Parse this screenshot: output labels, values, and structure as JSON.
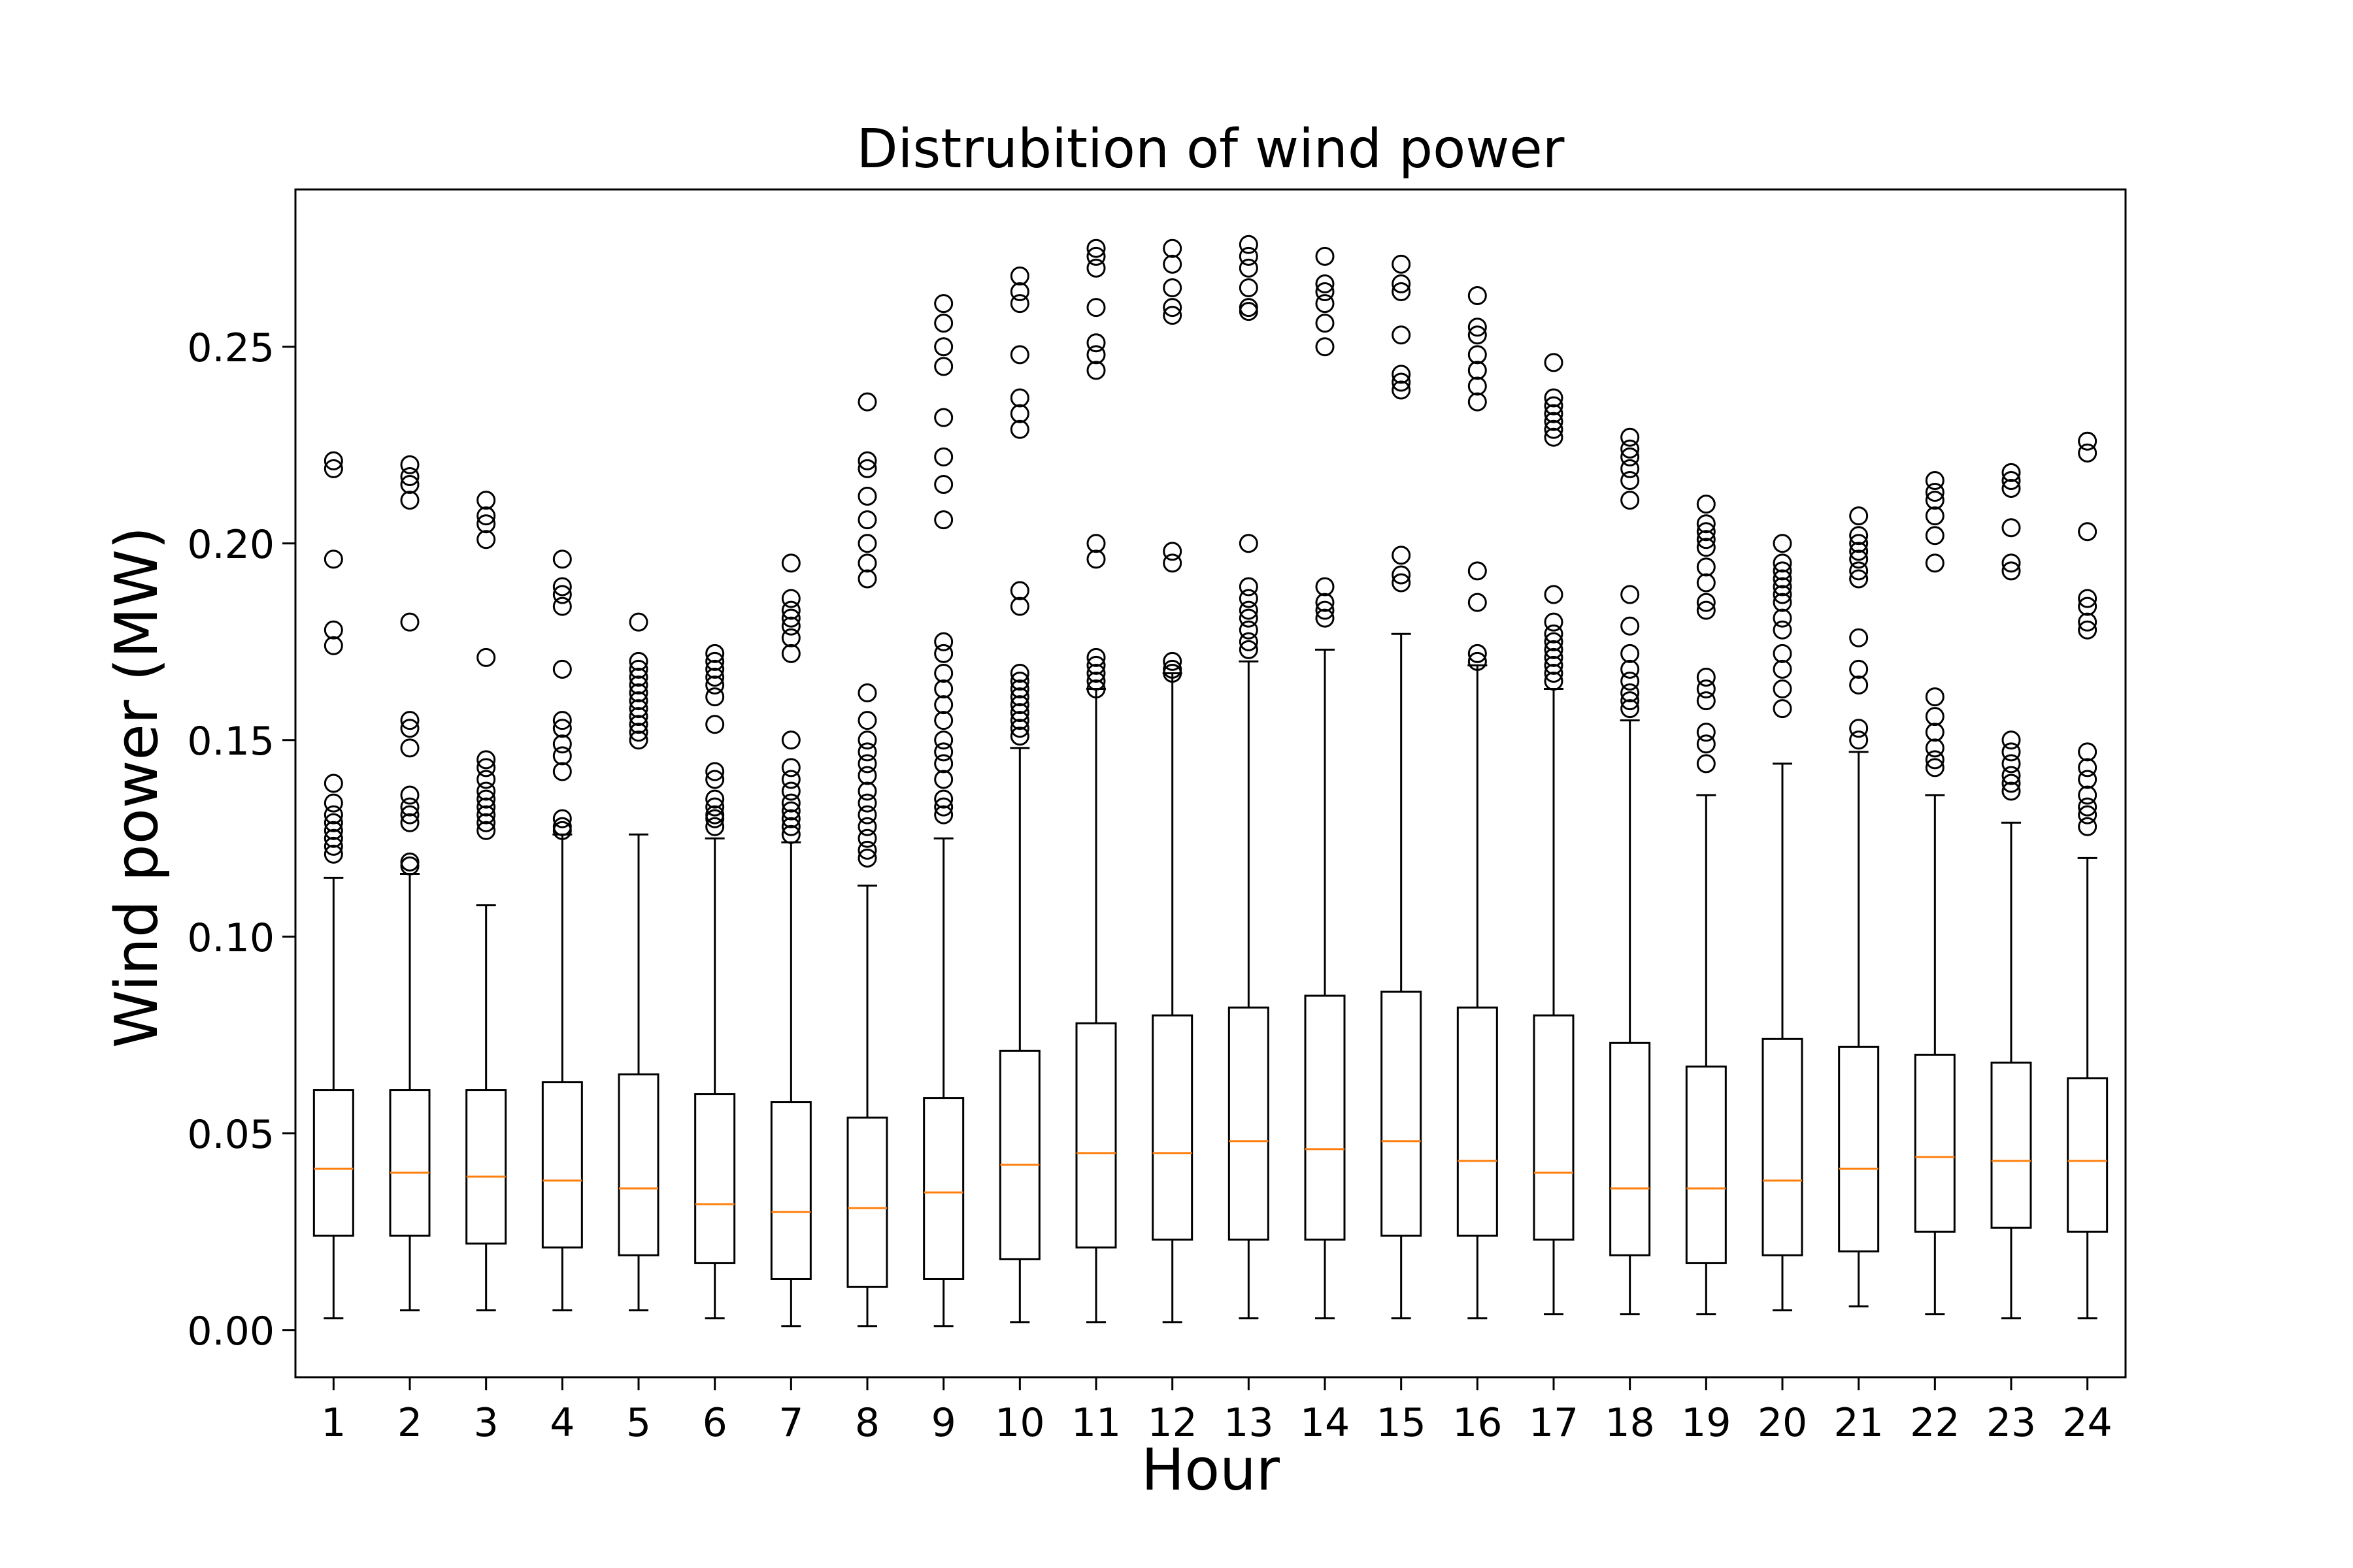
{
  "chart_data": {
    "type": "box",
    "title": "Distrubition of wind power",
    "xlabel": "Hour",
    "ylabel": "Wind power (MW)",
    "categories": [
      "1",
      "2",
      "3",
      "4",
      "5",
      "6",
      "7",
      "8",
      "9",
      "10",
      "11",
      "12",
      "13",
      "14",
      "15",
      "16",
      "17",
      "18",
      "19",
      "20",
      "21",
      "22",
      "23",
      "24"
    ],
    "yticks": [
      "0.00",
      "0.05",
      "0.10",
      "0.15",
      "0.20",
      "0.25"
    ],
    "ylim": [
      -0.012,
      0.29
    ],
    "grid": false,
    "colors": {
      "box": "#000000",
      "median": "#ff7f0e",
      "outlier": "#000000"
    },
    "boxes": [
      {
        "whislo": 0.003,
        "q1": 0.024,
        "med": 0.041,
        "q3": 0.061,
        "whishi": 0.115,
        "fliers": [
          0.221,
          0.219,
          0.196,
          0.178,
          0.174,
          0.139,
          0.134,
          0.131,
          0.129,
          0.127,
          0.125,
          0.123,
          0.121
        ]
      },
      {
        "whislo": 0.005,
        "q1": 0.024,
        "med": 0.04,
        "q3": 0.061,
        "whishi": 0.116,
        "fliers": [
          0.22,
          0.217,
          0.215,
          0.211,
          0.18,
          0.155,
          0.153,
          0.148,
          0.136,
          0.133,
          0.131,
          0.129,
          0.119,
          0.118
        ]
      },
      {
        "whislo": 0.005,
        "q1": 0.022,
        "med": 0.039,
        "q3": 0.061,
        "whishi": 0.108,
        "fliers": [
          0.211,
          0.207,
          0.205,
          0.201,
          0.171,
          0.145,
          0.143,
          0.14,
          0.137,
          0.135,
          0.133,
          0.131,
          0.129,
          0.127
        ]
      },
      {
        "whislo": 0.005,
        "q1": 0.021,
        "med": 0.038,
        "q3": 0.063,
        "whishi": 0.126,
        "fliers": [
          0.196,
          0.189,
          0.187,
          0.184,
          0.168,
          0.155,
          0.153,
          0.149,
          0.146,
          0.142,
          0.13,
          0.128,
          0.127
        ]
      },
      {
        "whislo": 0.005,
        "q1": 0.019,
        "med": 0.036,
        "q3": 0.065,
        "whishi": 0.126,
        "fliers": [
          0.18,
          0.17,
          0.168,
          0.166,
          0.164,
          0.162,
          0.16,
          0.158,
          0.156,
          0.154,
          0.152,
          0.15
        ]
      },
      {
        "whislo": 0.003,
        "q1": 0.017,
        "med": 0.032,
        "q3": 0.06,
        "whishi": 0.125,
        "fliers": [
          0.172,
          0.17,
          0.168,
          0.166,
          0.164,
          0.161,
          0.154,
          0.142,
          0.14,
          0.135,
          0.133,
          0.131,
          0.13,
          0.128
        ]
      },
      {
        "whislo": 0.001,
        "q1": 0.013,
        "med": 0.03,
        "q3": 0.058,
        "whishi": 0.124,
        "fliers": [
          0.195,
          0.186,
          0.183,
          0.181,
          0.179,
          0.176,
          0.172,
          0.15,
          0.143,
          0.14,
          0.137,
          0.134,
          0.132,
          0.13,
          0.128,
          0.126
        ]
      },
      {
        "whislo": 0.001,
        "q1": 0.011,
        "med": 0.031,
        "q3": 0.054,
        "whishi": 0.113,
        "fliers": [
          0.236,
          0.221,
          0.219,
          0.212,
          0.206,
          0.2,
          0.195,
          0.191,
          0.162,
          0.155,
          0.15,
          0.147,
          0.144,
          0.141,
          0.137,
          0.134,
          0.131,
          0.128,
          0.125,
          0.122,
          0.12
        ]
      },
      {
        "whislo": 0.001,
        "q1": 0.013,
        "med": 0.035,
        "q3": 0.059,
        "whishi": 0.125,
        "fliers": [
          0.261,
          0.256,
          0.25,
          0.245,
          0.232,
          0.222,
          0.215,
          0.206,
          0.175,
          0.172,
          0.167,
          0.163,
          0.159,
          0.155,
          0.15,
          0.147,
          0.144,
          0.14,
          0.135,
          0.133,
          0.131
        ]
      },
      {
        "whislo": 0.002,
        "q1": 0.018,
        "med": 0.042,
        "q3": 0.071,
        "whishi": 0.148,
        "fliers": [
          0.268,
          0.264,
          0.261,
          0.248,
          0.237,
          0.233,
          0.229,
          0.188,
          0.184,
          0.167,
          0.165,
          0.163,
          0.161,
          0.159,
          0.157,
          0.155,
          0.153,
          0.151
        ]
      },
      {
        "whislo": 0.002,
        "q1": 0.021,
        "med": 0.045,
        "q3": 0.078,
        "whishi": 0.163,
        "fliers": [
          0.275,
          0.273,
          0.27,
          0.26,
          0.251,
          0.248,
          0.244,
          0.2,
          0.196,
          0.171,
          0.169,
          0.167,
          0.165,
          0.163
        ]
      },
      {
        "whislo": 0.002,
        "q1": 0.023,
        "med": 0.045,
        "q3": 0.08,
        "whishi": 0.167,
        "fliers": [
          0.275,
          0.271,
          0.265,
          0.26,
          0.258,
          0.198,
          0.195,
          0.17,
          0.168,
          0.167
        ]
      },
      {
        "whislo": 0.003,
        "q1": 0.023,
        "med": 0.048,
        "q3": 0.082,
        "whishi": 0.17,
        "fliers": [
          0.276,
          0.273,
          0.27,
          0.265,
          0.26,
          0.259,
          0.2,
          0.189,
          0.186,
          0.183,
          0.181,
          0.178,
          0.175,
          0.173
        ]
      },
      {
        "whislo": 0.003,
        "q1": 0.023,
        "med": 0.046,
        "q3": 0.085,
        "whishi": 0.173,
        "fliers": [
          0.273,
          0.266,
          0.264,
          0.261,
          0.256,
          0.25,
          0.189,
          0.185,
          0.183,
          0.181
        ]
      },
      {
        "whislo": 0.003,
        "q1": 0.024,
        "med": 0.048,
        "q3": 0.086,
        "whishi": 0.177,
        "fliers": [
          0.271,
          0.266,
          0.264,
          0.253,
          0.243,
          0.241,
          0.239,
          0.197,
          0.192,
          0.19
        ]
      },
      {
        "whislo": 0.003,
        "q1": 0.024,
        "med": 0.043,
        "q3": 0.082,
        "whishi": 0.169,
        "fliers": [
          0.263,
          0.255,
          0.253,
          0.248,
          0.244,
          0.24,
          0.236,
          0.193,
          0.185,
          0.172,
          0.17
        ]
      },
      {
        "whislo": 0.004,
        "q1": 0.023,
        "med": 0.04,
        "q3": 0.08,
        "whishi": 0.163,
        "fliers": [
          0.246,
          0.237,
          0.235,
          0.233,
          0.231,
          0.229,
          0.227,
          0.187,
          0.18,
          0.177,
          0.175,
          0.173,
          0.171,
          0.169,
          0.167,
          0.165
        ]
      },
      {
        "whislo": 0.004,
        "q1": 0.019,
        "med": 0.036,
        "q3": 0.073,
        "whishi": 0.155,
        "fliers": [
          0.227,
          0.224,
          0.222,
          0.219,
          0.216,
          0.211,
          0.187,
          0.179,
          0.172,
          0.168,
          0.165,
          0.162,
          0.16,
          0.158
        ]
      },
      {
        "whislo": 0.004,
        "q1": 0.017,
        "med": 0.036,
        "q3": 0.067,
        "whishi": 0.136,
        "fliers": [
          0.21,
          0.205,
          0.203,
          0.201,
          0.199,
          0.194,
          0.19,
          0.185,
          0.183,
          0.166,
          0.163,
          0.16,
          0.152,
          0.149,
          0.144
        ]
      },
      {
        "whislo": 0.005,
        "q1": 0.019,
        "med": 0.038,
        "q3": 0.074,
        "whishi": 0.144,
        "fliers": [
          0.2,
          0.195,
          0.193,
          0.191,
          0.189,
          0.187,
          0.185,
          0.181,
          0.178,
          0.172,
          0.168,
          0.163,
          0.158
        ]
      },
      {
        "whislo": 0.006,
        "q1": 0.02,
        "med": 0.041,
        "q3": 0.072,
        "whishi": 0.147,
        "fliers": [
          0.207,
          0.202,
          0.2,
          0.198,
          0.196,
          0.193,
          0.191,
          0.176,
          0.168,
          0.164,
          0.153,
          0.15
        ]
      },
      {
        "whislo": 0.004,
        "q1": 0.025,
        "med": 0.044,
        "q3": 0.07,
        "whishi": 0.136,
        "fliers": [
          0.216,
          0.213,
          0.211,
          0.207,
          0.202,
          0.195,
          0.161,
          0.156,
          0.152,
          0.148,
          0.145,
          0.143
        ]
      },
      {
        "whislo": 0.003,
        "q1": 0.026,
        "med": 0.043,
        "q3": 0.068,
        "whishi": 0.129,
        "fliers": [
          0.218,
          0.216,
          0.214,
          0.204,
          0.195,
          0.193,
          0.15,
          0.147,
          0.144,
          0.141,
          0.139,
          0.137
        ]
      },
      {
        "whislo": 0.003,
        "q1": 0.025,
        "med": 0.043,
        "q3": 0.064,
        "whishi": 0.12,
        "fliers": [
          0.226,
          0.223,
          0.203,
          0.186,
          0.184,
          0.18,
          0.178,
          0.147,
          0.143,
          0.14,
          0.136,
          0.133,
          0.131,
          0.128
        ]
      }
    ]
  }
}
